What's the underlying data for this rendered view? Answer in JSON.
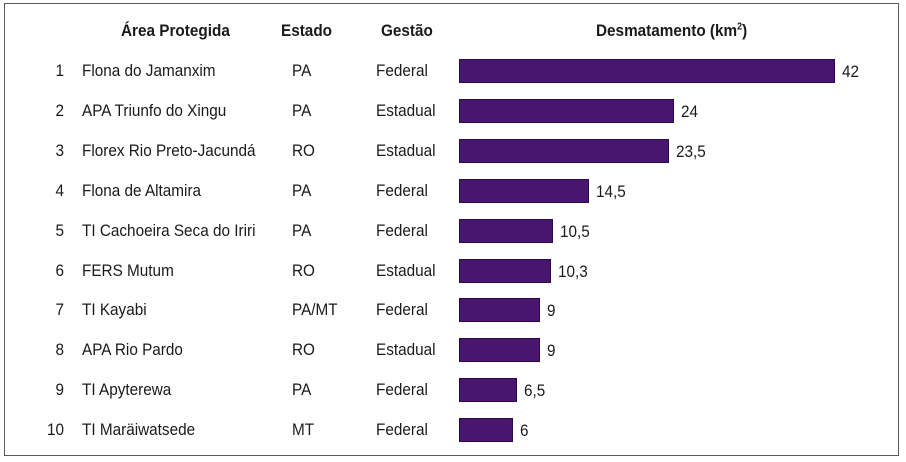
{
  "headers": {
    "area": "Área Protegida",
    "estado": "Estado",
    "gestao": "Gestão",
    "desmatamento": "Desmatamento (km",
    "desmatamento_sup": "2",
    "desmatamento_close": ")"
  },
  "colors": {
    "bar": "#48166c"
  },
  "rows": [
    {
      "rank": "1",
      "area": "Flona do Jamanxim",
      "estado": "PA",
      "gestao": "Federal",
      "value_label": "42"
    },
    {
      "rank": "2",
      "area": "APA Triunfo do Xingu",
      "estado": "PA",
      "gestao": "Estadual",
      "value_label": "24"
    },
    {
      "rank": "3",
      "area": "Florex Rio Preto-Jacundá",
      "estado": "RO",
      "gestao": "Estadual",
      "value_label": "23,5"
    },
    {
      "rank": "4",
      "area": "Flona de Altamira",
      "estado": "PA",
      "gestao": "Federal",
      "value_label": "14,5"
    },
    {
      "rank": "5",
      "area": "TI Cachoeira Seca do Iriri",
      "estado": "PA",
      "gestao": "Federal",
      "value_label": "10,5"
    },
    {
      "rank": "6",
      "area": "FERS Mutum",
      "estado": "RO",
      "gestao": "Estadual",
      "value_label": "10,3"
    },
    {
      "rank": "7",
      "area": "TI Kayabi",
      "estado": "PA/MT",
      "gestao": "Federal",
      "value_label": "9"
    },
    {
      "rank": "8",
      "area": "APA Rio Pardo",
      "estado": "RO",
      "gestao": "Estadual",
      "value_label": "9"
    },
    {
      "rank": "9",
      "area": "TI Apyterewa",
      "estado": "PA",
      "gestao": "Federal",
      "value_label": "6,5"
    },
    {
      "rank": "10",
      "area": "TI Maräiwatsede",
      "estado": "MT",
      "gestao": "Federal",
      "value_label": "6"
    }
  ],
  "chart_data": {
    "type": "bar",
    "orientation": "horizontal",
    "categories": [
      "Flona do Jamanxim",
      "APA Triunfo do Xingu",
      "Florex Rio Preto-Jacundá",
      "Flona de Altamira",
      "TI Cachoeira Seca do Iriri",
      "FERS Mutum",
      "TI Kayabi",
      "APA Rio Pardo",
      "TI Apyterewa",
      "TI Maräiwatsede"
    ],
    "values": [
      42,
      24,
      23.5,
      14.5,
      10.5,
      10.3,
      9,
      9,
      6.5,
      6
    ],
    "title": "Desmatamento (km2)",
    "xlabel": "",
    "ylabel": "",
    "xlim": [
      0,
      42
    ],
    "grid": false,
    "legend": "none"
  }
}
